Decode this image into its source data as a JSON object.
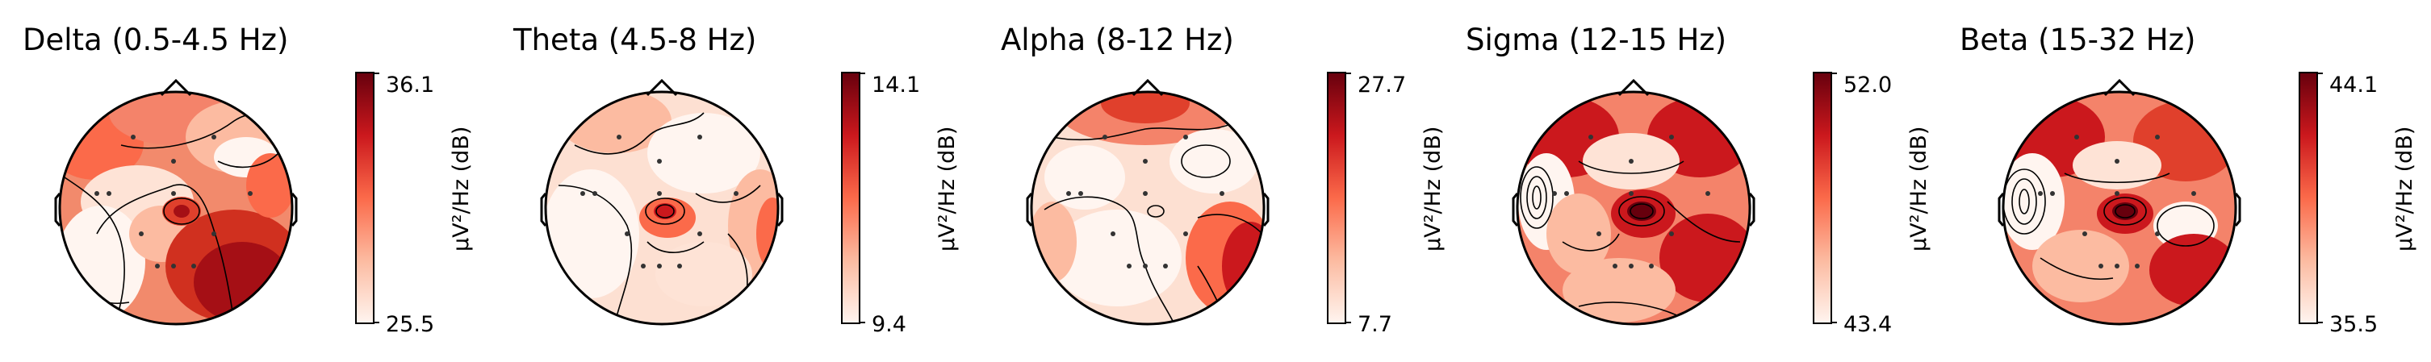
{
  "figure": {
    "panels": [
      {
        "id": "delta",
        "title": "Delta (0.5-4.5 Hz)",
        "cb_max": "36.1",
        "cb_min": "25.5",
        "cb_label": "µV²/Hz (dB)"
      },
      {
        "id": "theta",
        "title": "Theta (4.5-8 Hz)",
        "cb_max": "14.1",
        "cb_min": "9.4",
        "cb_label": "µV²/Hz (dB)"
      },
      {
        "id": "alpha",
        "title": "Alpha (8-12 Hz)",
        "cb_max": "27.7",
        "cb_min": "7.7",
        "cb_label": "µV²/Hz (dB)"
      },
      {
        "id": "sigma",
        "title": "Sigma (12-15 Hz)",
        "cb_max": "52.0",
        "cb_min": "43.4",
        "cb_label": "µV²/Hz (dB)"
      },
      {
        "id": "beta",
        "title": "Beta (15-32 Hz)",
        "cb_max": "44.1",
        "cb_min": "35.5",
        "cb_label": "µV²/Hz (dB)"
      }
    ],
    "colormap": [
      "#fff5f0",
      "#fcbba1",
      "#fb6a4a",
      "#cb181d",
      "#67000d"
    ]
  }
}
